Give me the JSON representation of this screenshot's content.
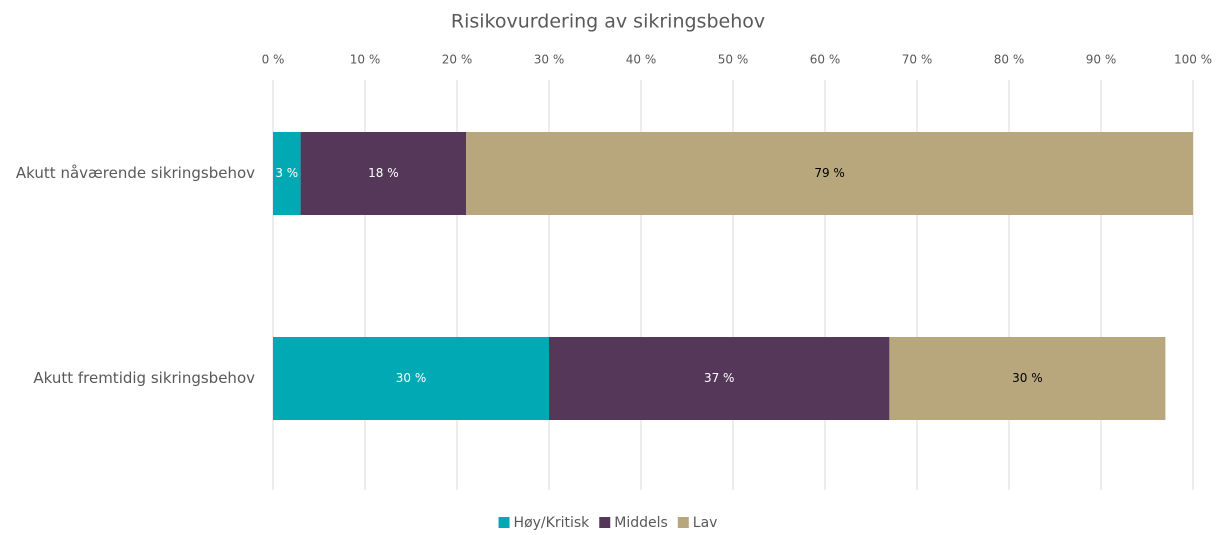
{
  "chart_data": {
    "type": "stacked_barh",
    "title": "Risikovurdering av sikringsbehov",
    "categories": [
      "Akutt nåværende sikringsbehov",
      "Akutt fremtidig sikringsbehov"
    ],
    "series": [
      {
        "name": "Høy/Kritisk",
        "color": "#00a9b4",
        "values": [
          3,
          30
        ],
        "value_labels": [
          "3 %",
          "30 %"
        ]
      },
      {
        "name": "Middels",
        "color": "#553859",
        "values": [
          18,
          37
        ],
        "value_labels": [
          "18 %",
          "37 %"
        ]
      },
      {
        "name": "Lav",
        "color": "#b8a77c",
        "values": [
          79,
          30
        ],
        "value_labels": [
          "79 %",
          "30 %"
        ]
      }
    ],
    "xlim": [
      0,
      100
    ],
    "xticks": [
      {
        "value": 0,
        "label": "0 %"
      },
      {
        "value": 10,
        "label": "10 %"
      },
      {
        "value": 20,
        "label": "20 %"
      },
      {
        "value": 30,
        "label": "30 %"
      },
      {
        "value": 40,
        "label": "40 %"
      },
      {
        "value": 50,
        "label": "50 %"
      },
      {
        "value": 60,
        "label": "60 %"
      },
      {
        "value": 70,
        "label": "70 %"
      },
      {
        "value": 80,
        "label": "80 %"
      },
      {
        "value": 90,
        "label": "90 %"
      },
      {
        "value": 100,
        "label": "100 %"
      }
    ],
    "grid": true,
    "legend": "bottom"
  }
}
